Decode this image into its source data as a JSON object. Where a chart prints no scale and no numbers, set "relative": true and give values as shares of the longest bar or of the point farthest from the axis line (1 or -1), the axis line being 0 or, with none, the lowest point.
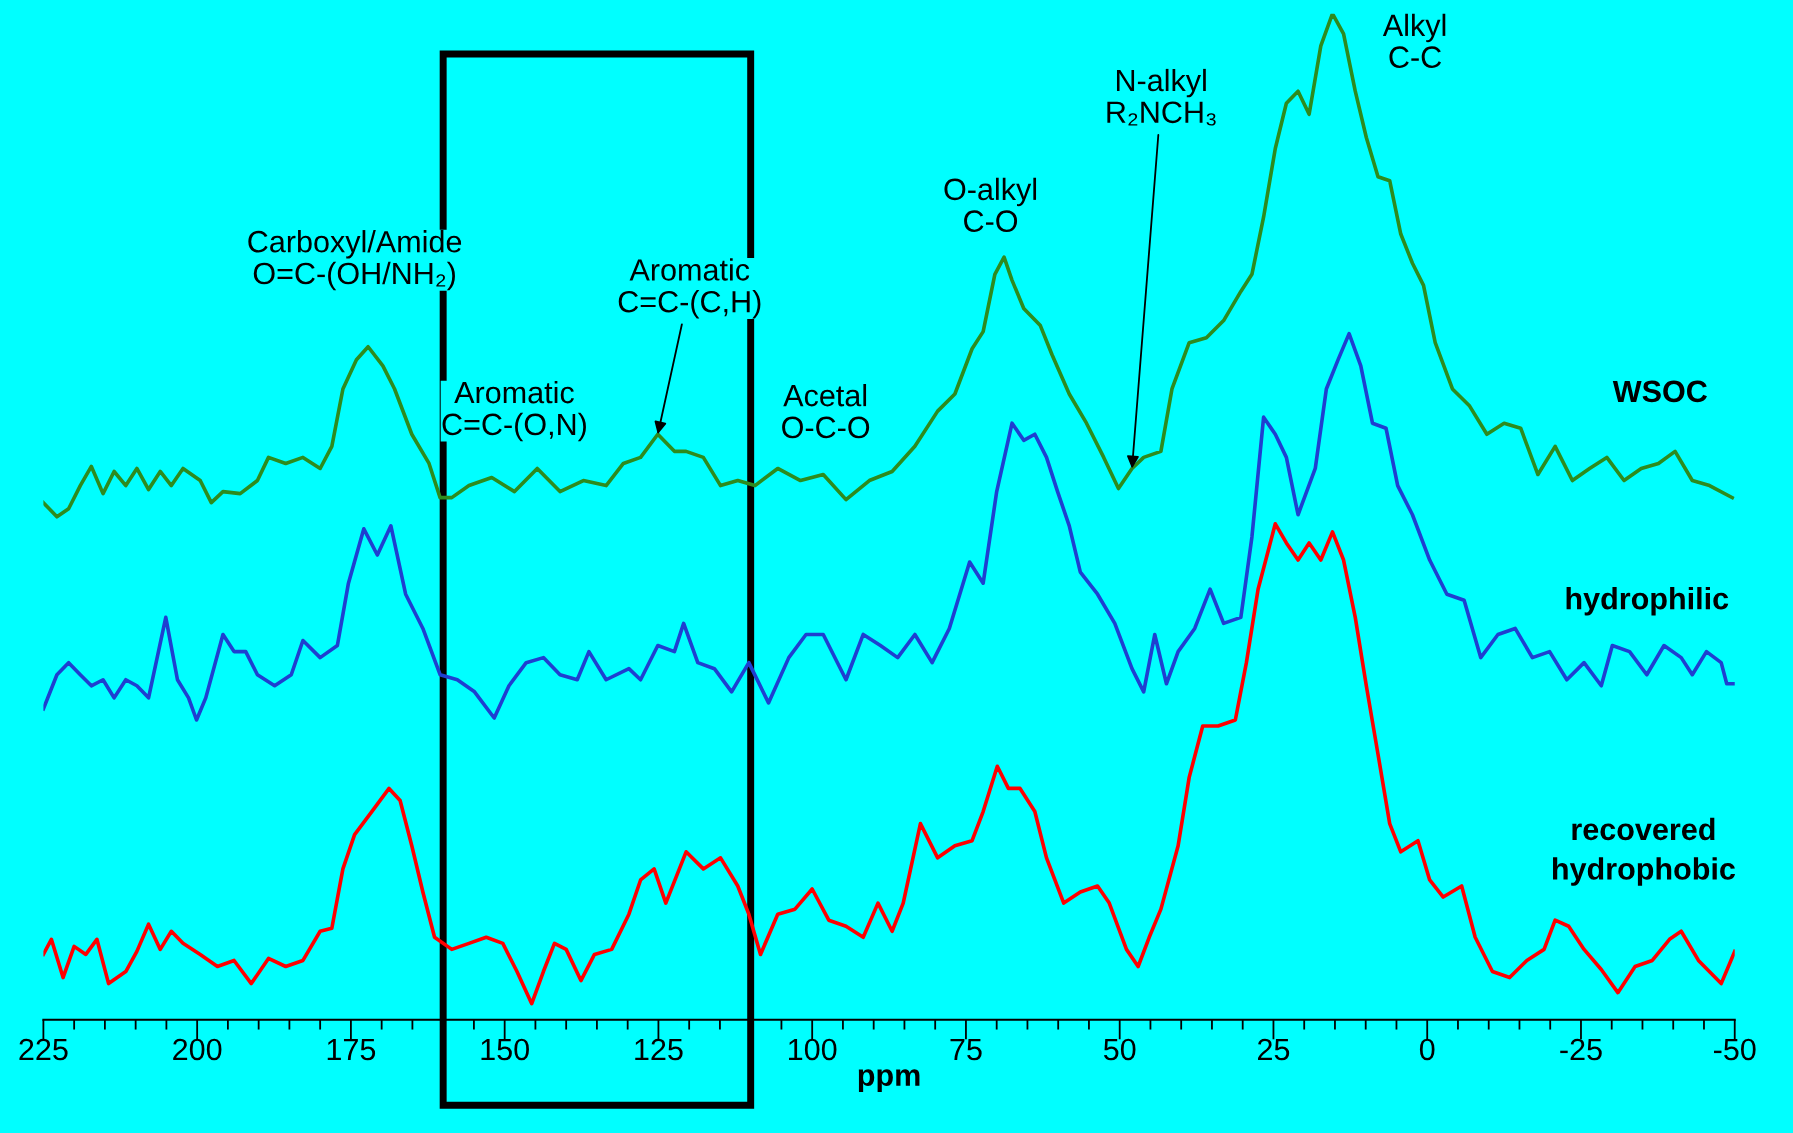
{
  "chart_data": {
    "type": "line",
    "relative": true,
    "xlabel": "ppm",
    "xlim": [
      225,
      -50
    ],
    "xticks": [
      225,
      {
        "value": 220,
        "label": null
      },
      {
        "value": 215,
        "label": null
      },
      {
        "value": 210,
        "label": null
      },
      {
        "value": 205,
        "label": null
      },
      200,
      {
        "value": 195,
        "label": null
      },
      {
        "value": 190,
        "label": null
      },
      {
        "value": 185,
        "label": null
      },
      {
        "value": 180,
        "label": null
      },
      175,
      {
        "value": 170,
        "label": null
      },
      {
        "value": 165,
        "label": null
      },
      {
        "value": 160,
        "label": null
      },
      {
        "value": 155,
        "label": null
      },
      150,
      {
        "value": 145,
        "label": null
      },
      {
        "value": 140,
        "label": null
      },
      {
        "value": 135,
        "label": null
      },
      {
        "value": 130,
        "label": null
      },
      125,
      {
        "value": 120,
        "label": null
      },
      {
        "value": 115,
        "label": null
      },
      {
        "value": 110,
        "label": null
      },
      {
        "value": 105,
        "label": null
      },
      100,
      {
        "value": 95,
        "label": null
      },
      {
        "value": 90,
        "label": null
      },
      {
        "value": 85,
        "label": null
      },
      {
        "value": 80,
        "label": null
      },
      75,
      {
        "value": 70,
        "label": null
      },
      {
        "value": 65,
        "label": null
      },
      {
        "value": 60,
        "label": null
      },
      {
        "value": 55,
        "label": null
      },
      50,
      {
        "value": 45,
        "label": null
      },
      {
        "value": 40,
        "label": null
      },
      {
        "value": 35,
        "label": null
      },
      {
        "value": 30,
        "label": null
      },
      25,
      {
        "value": 20,
        "label": null
      },
      {
        "value": 15,
        "label": null
      },
      {
        "value": 10,
        "label": null
      },
      {
        "value": 5,
        "label": null
      },
      0,
      {
        "value": -5,
        "label": null
      },
      {
        "value": -10,
        "label": null
      },
      {
        "value": -15,
        "label": null
      },
      {
        "value": -20,
        "label": null
      },
      -25,
      {
        "value": -30,
        "label": null
      },
      {
        "value": -35,
        "label": null
      },
      {
        "value": -40,
        "label": null
      },
      {
        "value": -45,
        "label": null
      },
      -50
    ],
    "tick_labels": "x",
    "grid": false,
    "legend": false,
    "marker": "none",
    "line_style": "solid",
    "bands": [
      {
        "axis": "x",
        "from": 160,
        "to": 110,
        "color": "#000000"
      }
    ],
    "annotations": [
      "Carboxyl/Amide\nO=C-(OH/NH₂)",
      "Aromatic\nC=C-(O,N)",
      {
        "text": "Aromatic\nC=C-(C,H)",
        "x": 125.1,
        "y": 0.582
      },
      "Acetal\nO-C-O",
      "O-alkyl\nC-O",
      {
        "text": "N-alkyl\nR₂NCH₃",
        "x": 48,
        "y": 0.548
      },
      "Alkyl\nC-C"
    ],
    "series": [
      {
        "name": "WSOC",
        "color": "#2e8b1e",
        "x": [
          225,
          222.8,
          220.9,
          219,
          217.2,
          215.3,
          213.5,
          211.6,
          209.8,
          207.9,
          206,
          204.2,
          202.3,
          199.5,
          197.7,
          195.8,
          193,
          190.2,
          188.4,
          185.6,
          182.8,
          180,
          178.1,
          176.3,
          174.1,
          172.2,
          169.8,
          167.9,
          165.1,
          162.3,
          160.5,
          158.6,
          155.8,
          152.1,
          148.4,
          144.7,
          141,
          137.2,
          133.5,
          130.7,
          127.9,
          125.1,
          122.4,
          120.5,
          117.7,
          114.9,
          112.1,
          109.3,
          105.6,
          101.9,
          98.2,
          94.5,
          90.7,
          87,
          83.3,
          79.6,
          76.8,
          74,
          72.2,
          70.3,
          68.8,
          67.5,
          65.6,
          62.9,
          61,
          58.2,
          55.4,
          52.6,
          50.2,
          48,
          46.1,
          43.3,
          41.5,
          38.7,
          35.9,
          33.1,
          30.3,
          28.5,
          26.6,
          24.7,
          22.9,
          21,
          19.2,
          17.3,
          15.4,
          13.6,
          11.7,
          9.9,
          8,
          6.1,
          4.3,
          2.4,
          0.6,
          -1.3,
          -4.1,
          -6.9,
          -9.7,
          -12.5,
          -15.2,
          -18,
          -20.8,
          -23.6,
          -26.4,
          -29.2,
          -32,
          -34.8,
          -37.6,
          -40.3,
          -43.1,
          -45.9,
          -49.6
        ],
        "values": [
          0.514,
          0.5,
          0.508,
          0.531,
          0.55,
          0.523,
          0.545,
          0.531,
          0.548,
          0.527,
          0.545,
          0.531,
          0.548,
          0.536,
          0.514,
          0.525,
          0.523,
          0.536,
          0.559,
          0.553,
          0.559,
          0.548,
          0.57,
          0.627,
          0.656,
          0.669,
          0.65,
          0.627,
          0.582,
          0.553,
          0.519,
          0.519,
          0.531,
          0.539,
          0.525,
          0.548,
          0.525,
          0.536,
          0.531,
          0.553,
          0.559,
          0.582,
          0.565,
          0.565,
          0.559,
          0.531,
          0.536,
          0.531,
          0.548,
          0.536,
          0.542,
          0.517,
          0.536,
          0.545,
          0.57,
          0.605,
          0.622,
          0.667,
          0.684,
          0.741,
          0.758,
          0.735,
          0.707,
          0.69,
          0.661,
          0.622,
          0.593,
          0.559,
          0.528,
          0.548,
          0.559,
          0.565,
          0.627,
          0.673,
          0.678,
          0.695,
          0.724,
          0.741,
          0.798,
          0.866,
          0.911,
          0.923,
          0.9,
          0.968,
          1,
          0.98,
          0.923,
          0.877,
          0.838,
          0.834,
          0.781,
          0.752,
          0.73,
          0.673,
          0.627,
          0.61,
          0.582,
          0.593,
          0.588,
          0.542,
          0.57,
          0.536,
          0.548,
          0.559,
          0.536,
          0.548,
          0.553,
          0.565,
          0.536,
          0.531,
          0.519
        ]
      },
      {
        "name": "hydrophilic",
        "color": "#1f3fd0",
        "x": [
          225,
          222.8,
          220.9,
          219,
          217.2,
          215.3,
          213.5,
          211.6,
          209.8,
          207.9,
          205.1,
          203.2,
          201.4,
          200.1,
          198.6,
          195.8,
          194,
          192.1,
          190.2,
          187.4,
          184.7,
          182.8,
          180,
          177.2,
          175.4,
          172.9,
          170.7,
          168.5,
          166.1,
          163.3,
          160.5,
          157.7,
          154.9,
          151.7,
          149.3,
          146.5,
          143.7,
          141,
          138.2,
          136.3,
          133.5,
          129.8,
          127.9,
          125.1,
          122.4,
          120.9,
          118.6,
          115.9,
          113.1,
          110.3,
          107.1,
          103.8,
          101,
          98.2,
          94.5,
          91.7,
          88.9,
          86.1,
          83.3,
          80.5,
          77.7,
          74.4,
          72.2,
          70,
          67.5,
          65.6,
          63.8,
          61.9,
          60.1,
          58.2,
          56.4,
          53.6,
          50.8,
          48,
          46.1,
          44.3,
          42.4,
          40.5,
          37.8,
          35.3,
          33.1,
          30.3,
          28.5,
          26.6,
          24.7,
          22.9,
          21,
          18.2,
          16.4,
          14.5,
          12.7,
          10.8,
          8.9,
          6.7,
          4.8,
          2.4,
          -0.4,
          -3.2,
          -6,
          -8.7,
          -11.5,
          -14.3,
          -17.1,
          -19.9,
          -22.7,
          -25.5,
          -28.3,
          -30.1,
          -32.9,
          -35.7,
          -38.5,
          -41.3,
          -43.1,
          -45.4,
          -47.8,
          -48.7,
          -50
        ],
        "values": [
          0.309,
          0.343,
          0.355,
          0.343,
          0.332,
          0.338,
          0.32,
          0.338,
          0.332,
          0.32,
          0.4,
          0.338,
          0.32,
          0.298,
          0.32,
          0.383,
          0.366,
          0.366,
          0.343,
          0.332,
          0.343,
          0.377,
          0.36,
          0.372,
          0.434,
          0.488,
          0.462,
          0.491,
          0.423,
          0.389,
          0.343,
          0.338,
          0.326,
          0.3,
          0.332,
          0.355,
          0.36,
          0.343,
          0.338,
          0.366,
          0.338,
          0.349,
          0.338,
          0.372,
          0.366,
          0.394,
          0.355,
          0.349,
          0.326,
          0.355,
          0.315,
          0.36,
          0.383,
          0.383,
          0.338,
          0.383,
          0.372,
          0.36,
          0.383,
          0.355,
          0.389,
          0.455,
          0.434,
          0.525,
          0.593,
          0.576,
          0.582,
          0.559,
          0.525,
          0.491,
          0.445,
          0.423,
          0.394,
          0.349,
          0.326,
          0.383,
          0.334,
          0.366,
          0.389,
          0.428,
          0.394,
          0.4,
          0.48,
          0.599,
          0.582,
          0.559,
          0.502,
          0.548,
          0.627,
          0.656,
          0.682,
          0.65,
          0.593,
          0.588,
          0.531,
          0.502,
          0.457,
          0.423,
          0.417,
          0.36,
          0.383,
          0.389,
          0.36,
          0.366,
          0.338,
          0.355,
          0.332,
          0.372,
          0.366,
          0.343,
          0.372,
          0.36,
          0.343,
          0.366,
          0.355,
          0.334,
          0.334
        ]
      },
      {
        "name": "recovered\nhydrophobic",
        "color": "#ff0000",
        "x": [
          225,
          223.7,
          221.8,
          220,
          218.1,
          216.3,
          214.4,
          211.6,
          209.8,
          207.9,
          206,
          204.2,
          202.3,
          199.5,
          196.7,
          194,
          191.2,
          188.4,
          185.6,
          182.8,
          180,
          178.1,
          176.3,
          174.4,
          171.6,
          168.8,
          167,
          165.1,
          163.3,
          161.4,
          158.6,
          155.8,
          153,
          150.3,
          148,
          145.6,
          143.7,
          141.9,
          140,
          137.6,
          135.4,
          132.6,
          129.8,
          127.9,
          125.7,
          123.8,
          120.5,
          117.7,
          114.9,
          112.1,
          110.3,
          108.4,
          105.6,
          102.8,
          100,
          97.3,
          94.5,
          91.7,
          89.3,
          87,
          85.2,
          82.4,
          79.6,
          76.8,
          74,
          72.2,
          69.9,
          68.1,
          66.2,
          63.8,
          61.9,
          59.1,
          56.4,
          53.6,
          51.7,
          48.9,
          47,
          45.2,
          43.3,
          40.5,
          38.7,
          36.5,
          34,
          31.2,
          29.4,
          27.5,
          24.7,
          22.9,
          21,
          19.2,
          17.3,
          15.4,
          13.6,
          11.7,
          9.9,
          8,
          6.1,
          4.3,
          1.5,
          -0.4,
          -2.6,
          -5.6,
          -7.8,
          -10.6,
          -13.4,
          -16.2,
          -19,
          -20.8,
          -23,
          -25.5,
          -28.3,
          -31,
          -33.8,
          -36.6,
          -39.4,
          -41.3,
          -44.1,
          -47.8,
          -50
        ],
        "values": [
          0.065,
          0.08,
          0.042,
          0.073,
          0.065,
          0.08,
          0.036,
          0.048,
          0.068,
          0.095,
          0.07,
          0.088,
          0.076,
          0.065,
          0.053,
          0.059,
          0.036,
          0.061,
          0.053,
          0.059,
          0.088,
          0.091,
          0.15,
          0.184,
          0.207,
          0.23,
          0.218,
          0.173,
          0.127,
          0.082,
          0.07,
          0.076,
          0.082,
          0.076,
          0.048,
          0.016,
          0.048,
          0.076,
          0.07,
          0.039,
          0.065,
          0.07,
          0.105,
          0.139,
          0.15,
          0.116,
          0.167,
          0.15,
          0.161,
          0.133,
          0.105,
          0.065,
          0.105,
          0.11,
          0.13,
          0.099,
          0.093,
          0.082,
          0.116,
          0.088,
          0.116,
          0.195,
          0.161,
          0.173,
          0.178,
          0.207,
          0.252,
          0.23,
          0.23,
          0.207,
          0.161,
          0.116,
          0.127,
          0.133,
          0.116,
          0.07,
          0.053,
          0.082,
          0.11,
          0.173,
          0.241,
          0.292,
          0.292,
          0.298,
          0.355,
          0.428,
          0.493,
          0.474,
          0.457,
          0.474,
          0.457,
          0.485,
          0.457,
          0.4,
          0.332,
          0.264,
          0.195,
          0.167,
          0.178,
          0.139,
          0.122,
          0.133,
          0.082,
          0.048,
          0.042,
          0.059,
          0.07,
          0.099,
          0.093,
          0.07,
          0.05,
          0.027,
          0.053,
          0.059,
          0.08,
          0.088,
          0.059,
          0.036,
          0.068
        ]
      }
    ]
  }
}
